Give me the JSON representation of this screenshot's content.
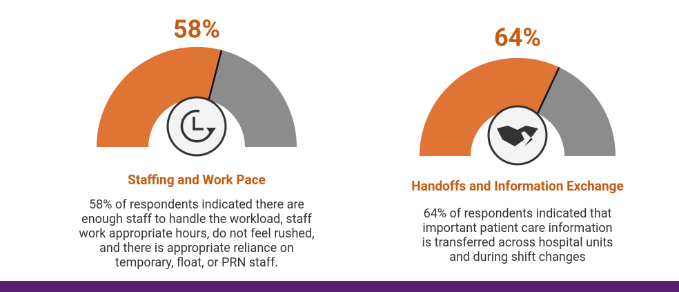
{
  "chart_data": [
    {
      "type": "gauge",
      "values": [
        58
      ],
      "value_labels": [
        "58%"
      ],
      "ylim": [
        0,
        100
      ],
      "title": "Staffing and Work Pace",
      "description": [
        "58% of respondents indicated there are",
        "enough staff to handle the workload, staff",
        "work appropriate hours, do not feel rushed,",
        "and there is appropriate reliance on",
        "temporary, float, or PRN staff."
      ],
      "color": "#e07434",
      "rest_color": "#8c8c8c"
    },
    {
      "type": "gauge",
      "values": [
        64
      ],
      "value_labels": [
        "64%"
      ],
      "ylim": [
        0,
        100
      ],
      "title": "Handoffs and Information Exchange",
      "description": [
        "64% of respondents indicated that",
        "important patient care information",
        "is transferred across hospital units",
        "and during shift changes"
      ],
      "color": "#e07434",
      "rest_color": "#8c8c8c"
    }
  ]
}
